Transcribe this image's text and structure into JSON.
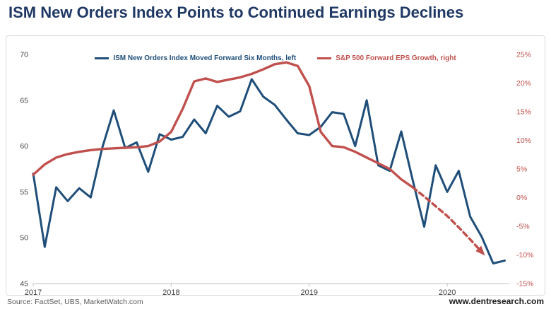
{
  "title": "ISM New Orders Index Points to Continued Earnings Declines",
  "legend": {
    "items": [
      {
        "label": "ISM New Orders Index Moved Forward Six Months, left",
        "color": "#1f4e79"
      },
      {
        "label": "S&P 500 Forward EPS Growth, right",
        "color": "#c0504d"
      }
    ]
  },
  "footer": {
    "source": "Source: FactSet, UBS, MarketWatch.com",
    "website": "www.dentresearch.com"
  },
  "colors": {
    "title": "#1f3864",
    "ism_line": "#1f4e79",
    "eps_line": "#c0504d",
    "right_axis_labels": "#c0504d",
    "axis_text": "#404040",
    "frame_border": "#d9d9d9"
  },
  "chart_data": {
    "type": "line",
    "title": "ISM New Orders Index Points to Continued Earnings Declines",
    "x_axis": {
      "min": 2017,
      "max": 2020.45,
      "ticks": [
        2017,
        2018,
        2019,
        2020
      ]
    },
    "y_left": {
      "min": 45,
      "max": 70,
      "ticks": [
        70,
        65,
        60,
        55,
        50,
        45
      ]
    },
    "y_right": {
      "min": -15,
      "max": 25,
      "ticks": [
        25,
        20,
        15,
        10,
        5,
        0,
        -5,
        -10,
        -15
      ],
      "format": "percent"
    },
    "legend_position": "top-center",
    "grid": false,
    "series": [
      {
        "id": "ism-new-orders",
        "name": "ISM New Orders Index Moved Forward Six Months, left",
        "axis": "left",
        "color": "#1f4e79",
        "style": "solid",
        "x_start": 2017.0,
        "x_step": 0.083333,
        "values": [
          57.0,
          49.0,
          55.5,
          54.0,
          55.4,
          54.4,
          59.8,
          63.9,
          59.8,
          60.4,
          57.2,
          61.3,
          60.7,
          61.0,
          62.9,
          61.4,
          64.4,
          63.2,
          63.8,
          67.3,
          65.4,
          64.5,
          62.9,
          61.4,
          61.2,
          62.1,
          63.7,
          63.5,
          60.0,
          65.0,
          57.9,
          57.3,
          61.6,
          56.3,
          51.2,
          57.9,
          55.0,
          57.3,
          52.3,
          50.1,
          47.2,
          47.5
        ]
      },
      {
        "id": "sp500-eps-growth",
        "name": "S&P 500 Forward EPS Growth, right",
        "axis": "right",
        "color": "#c0504d",
        "style": "solid",
        "x_start": 2017.0,
        "x_step": 0.083333,
        "values": [
          4.0,
          5.8,
          7.0,
          7.6,
          8.0,
          8.3,
          8.5,
          8.6,
          8.7,
          8.8,
          9.0,
          9.8,
          11.5,
          15.5,
          20.3,
          20.8,
          20.2,
          20.6,
          21.0,
          21.6,
          22.4,
          23.3,
          23.6,
          23.0,
          19.5,
          11.5,
          9.0,
          8.8,
          8.0,
          7.0,
          6.0,
          5.0,
          3.2,
          1.8
        ]
      },
      {
        "id": "sp500-eps-growth-forecast",
        "name": "S&P 500 Forward EPS Growth, right (dashed projection)",
        "axis": "right",
        "color": "#c0504d",
        "style": "dashed",
        "arrow_end": true,
        "x_start": 2019.75,
        "x_step": 0.083333,
        "values": [
          1.8,
          0.2,
          -1.5,
          -3.2,
          -5.2,
          -7.3,
          -9.5
        ]
      }
    ]
  }
}
